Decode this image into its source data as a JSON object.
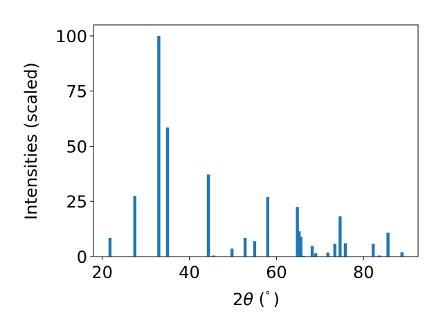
{
  "chart_data": {
    "type": "bar",
    "xlabel_main": "2",
    "xlabel_symbol": "θ",
    "xlabel_unit": " (",
    "xlabel_unit_symbol": "°",
    "xlabel_close": ")",
    "ylabel": "Intensities (scaled)",
    "xlim": [
      18.0,
      92.5
    ],
    "ylim": [
      0,
      105
    ],
    "xticks": [
      20,
      40,
      60,
      80
    ],
    "yticks": [
      0,
      25,
      50,
      75,
      100
    ],
    "bar_width_data": 0.7,
    "color": "#1f77b4",
    "x": [
      21.8,
      27.5,
      33.0,
      35.0,
      44.4,
      45.6,
      49.8,
      52.8,
      55.0,
      58.0,
      64.8,
      65.2,
      65.6,
      66.2,
      68.2,
      69.0,
      71.8,
      73.4,
      74.6,
      75.8,
      82.2,
      83.6,
      85.6,
      88.8
    ],
    "values": [
      8.5,
      27.5,
      100,
      58.5,
      37.2,
      0.5,
      3.6,
      8.5,
      7.0,
      27.0,
      22.5,
      11.5,
      9.0,
      0.4,
      4.8,
      1.5,
      1.8,
      5.8,
      18.3,
      6.0,
      5.8,
      0.5,
      10.8,
      2.0
    ]
  }
}
